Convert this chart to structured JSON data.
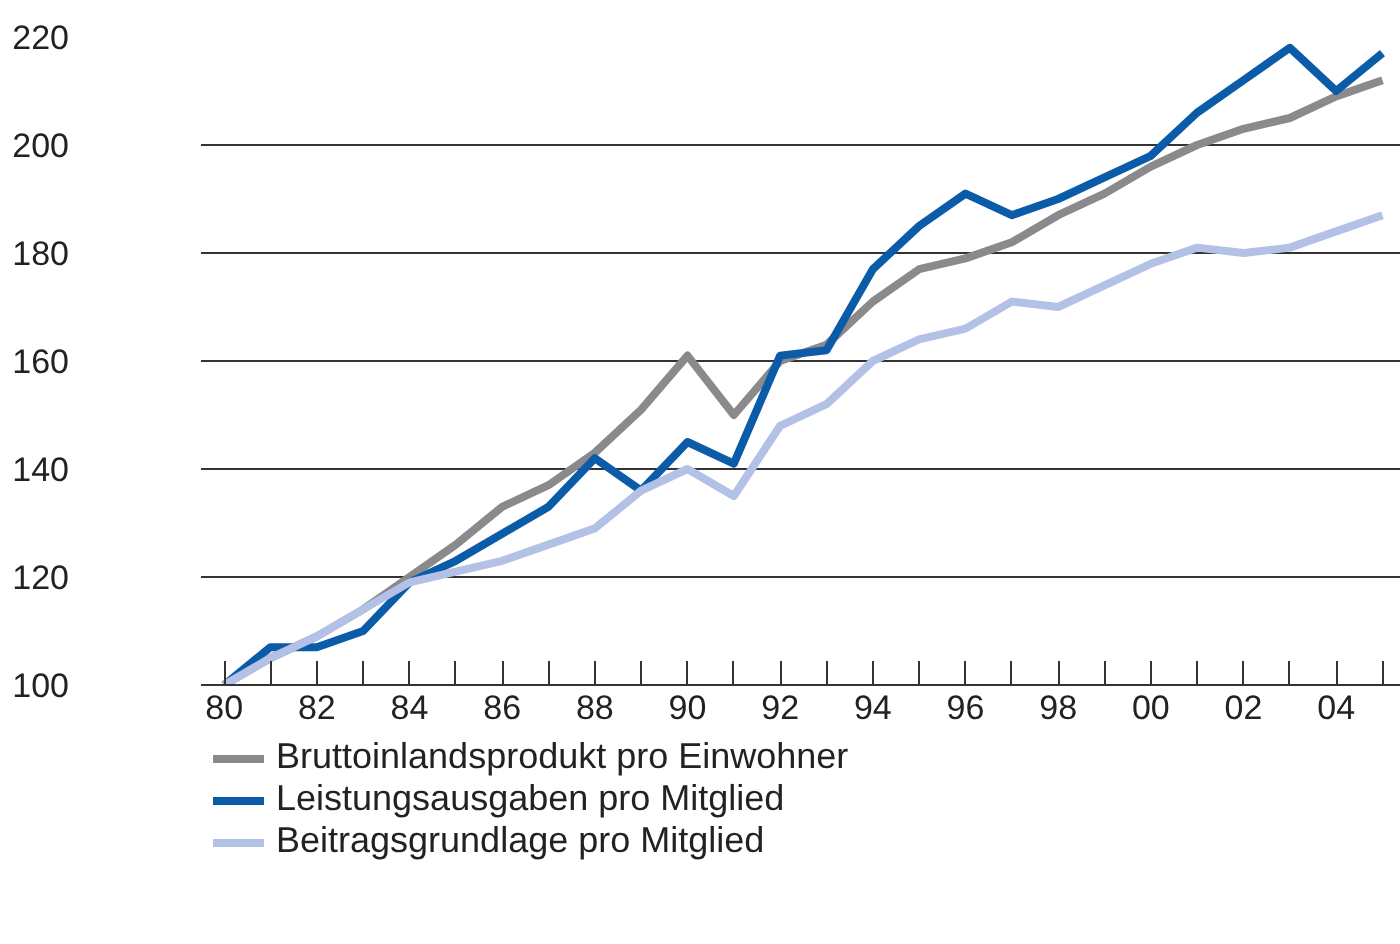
{
  "chart_data": {
    "type": "line",
    "x": [
      1980,
      1981,
      1982,
      1983,
      1984,
      1985,
      1986,
      1987,
      1988,
      1989,
      1990,
      1991,
      1992,
      1993,
      1994,
      1995,
      1996,
      1997,
      1998,
      1999,
      2000,
      2001,
      2002,
      2003,
      2004,
      2005
    ],
    "series": [
      {
        "name": "Bruttoinlandsprodukt pro Einwohner",
        "color": "#8a8a8d",
        "values": [
          100,
          105,
          109,
          114,
          120,
          126,
          133,
          137,
          143,
          151,
          161,
          150,
          160,
          163,
          171,
          177,
          179,
          182,
          187,
          191,
          196,
          200,
          203,
          205,
          209,
          212
        ]
      },
      {
        "name": "Leistungsausgaben pro Mitglied",
        "color": "#0a5ca8",
        "values": [
          100,
          107,
          107,
          110,
          119,
          123,
          128,
          133,
          142,
          136,
          145,
          141,
          161,
          162,
          177,
          185,
          191,
          187,
          190,
          194,
          198,
          206,
          212,
          218,
          210,
          217
        ]
      },
      {
        "name": "Beitragsgrundlage pro Mitglied",
        "color": "#b3c1e6",
        "values": [
          100,
          105,
          109,
          114,
          119,
          121,
          123,
          126,
          129,
          136,
          140,
          135,
          148,
          152,
          160,
          164,
          166,
          171,
          170,
          174,
          178,
          181,
          180,
          181,
          184,
          187
        ]
      }
    ],
    "xlim": [
      1979.5,
      2005.4
    ],
    "xticks": [
      {
        "value": 1980,
        "label": "80"
      },
      {
        "value": 1981,
        "label": null
      },
      {
        "value": 1982,
        "label": "82"
      },
      {
        "value": 1983,
        "label": null
      },
      {
        "value": 1984,
        "label": "84"
      },
      {
        "value": 1985,
        "label": null
      },
      {
        "value": 1986,
        "label": "86"
      },
      {
        "value": 1987,
        "label": null
      },
      {
        "value": 1988,
        "label": "88"
      },
      {
        "value": 1989,
        "label": null
      },
      {
        "value": 1990,
        "label": "90"
      },
      {
        "value": 1991,
        "label": null
      },
      {
        "value": 1992,
        "label": "92"
      },
      {
        "value": 1993,
        "label": null
      },
      {
        "value": 1994,
        "label": "94"
      },
      {
        "value": 1995,
        "label": null
      },
      {
        "value": 1996,
        "label": "96"
      },
      {
        "value": 1997,
        "label": null
      },
      {
        "value": 1998,
        "label": "98"
      },
      {
        "value": 1999,
        "label": null
      },
      {
        "value": 2000,
        "label": "00"
      },
      {
        "value": 2001,
        "label": null
      },
      {
        "value": 2002,
        "label": "02"
      },
      {
        "value": 2003,
        "label": null
      },
      {
        "value": 2004,
        "label": "04"
      },
      {
        "value": 2005,
        "label": null
      }
    ],
    "ylim": [
      100,
      220
    ],
    "yticks": [
      100,
      120,
      140,
      160,
      180,
      200,
      220
    ],
    "grid": "y",
    "legend": "bottom",
    "marker": "none",
    "line_style": "solid"
  }
}
